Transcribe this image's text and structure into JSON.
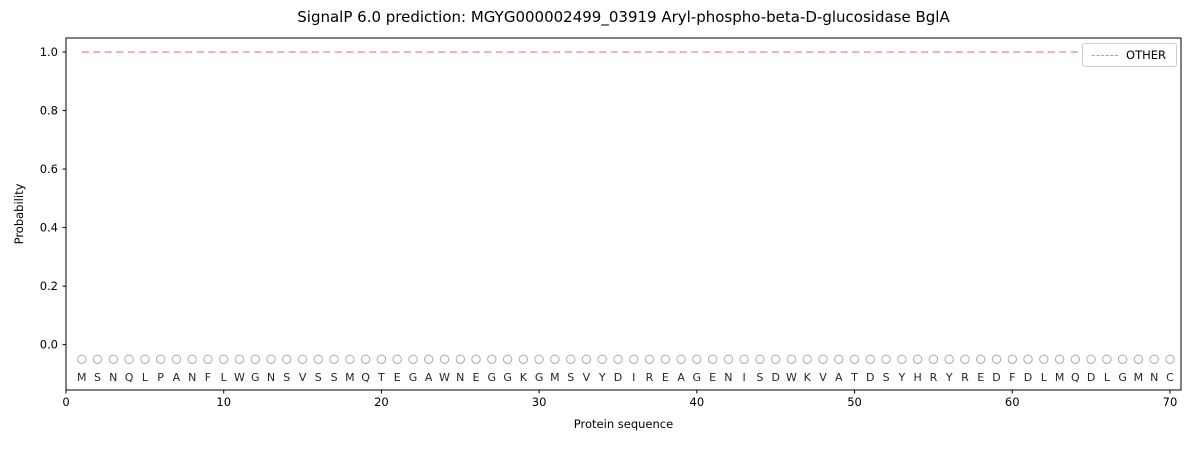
{
  "chart_data": {
    "type": "line",
    "title": "SignalP 6.0 prediction: MGYG000002499_03919 Aryl-phospho-beta-D-glucosidase BglA",
    "xlabel": "Protein sequence",
    "ylabel": "Probability",
    "sequence": "MSNQLPANFLWGNSVSSMQTEGAWNEGGKGMSVYDIREAGENISDWKVATDSYHRYREDFDLMQDLGMNC",
    "series": [
      {
        "name": "OTHER",
        "color": "#f08080",
        "style": "dashed",
        "values": [
          1.0,
          1.0,
          1.0,
          1.0,
          1.0,
          1.0,
          1.0,
          1.0,
          1.0,
          1.0,
          1.0,
          1.0,
          1.0,
          1.0,
          1.0,
          1.0,
          1.0,
          1.0,
          1.0,
          1.0,
          1.0,
          1.0,
          1.0,
          1.0,
          1.0,
          1.0,
          1.0,
          1.0,
          1.0,
          1.0,
          1.0,
          1.0,
          1.0,
          1.0,
          1.0,
          1.0,
          1.0,
          1.0,
          1.0,
          1.0,
          1.0,
          1.0,
          1.0,
          1.0,
          1.0,
          1.0,
          1.0,
          1.0,
          1.0,
          1.0,
          1.0,
          1.0,
          1.0,
          1.0,
          1.0,
          1.0,
          1.0,
          1.0,
          1.0,
          1.0,
          1.0,
          1.0,
          1.0,
          1.0,
          1.0,
          1.0,
          1.0,
          1.0,
          1.0,
          1.0
        ]
      }
    ],
    "residue_markers": {
      "shape": "open-circle",
      "y": -0.05,
      "color": "#ababab"
    },
    "xticks": [
      0,
      10,
      20,
      30,
      40,
      50,
      60,
      70
    ],
    "yticks": [
      0.0,
      0.2,
      0.4,
      0.6,
      0.8,
      1.0
    ],
    "xlim": [
      0,
      70.7
    ],
    "ylim": [
      -0.155,
      1.048
    ],
    "grid": false,
    "legend_position": "upper right",
    "axis_color": "#000000",
    "text_color": "#262626"
  },
  "legend": {
    "label": "OTHER"
  }
}
